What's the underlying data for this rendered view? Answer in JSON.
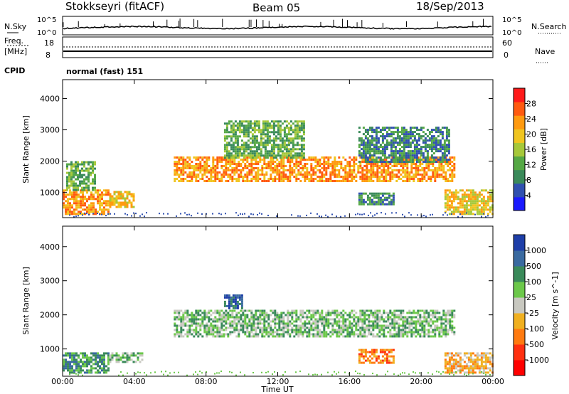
{
  "header": {
    "station": "Stokkseyri (fitACF)",
    "beam": "Beam 05",
    "date": "18/Sep/2013"
  },
  "noise_panel": {
    "left_label": "N.Sky",
    "right_label": "N.Search",
    "left_ticks": [
      "10^5",
      "10^0"
    ],
    "right_ticks": [
      "10^5",
      "10^0"
    ]
  },
  "freq_panel": {
    "left_label_top": "Freq.",
    "left_label_unit": "[MHz]",
    "right_label": "Nave",
    "left_ticks": [
      "18",
      "8"
    ],
    "right_ticks": [
      "60",
      "0"
    ]
  },
  "cpid": {
    "label": "CPID",
    "value": "normal (fast) 151"
  },
  "chart_data": [
    {
      "type": "heatmap",
      "name": "power",
      "ylabel": "Slant Range [km]",
      "yticks": [
        1000,
        2000,
        3000,
        4000
      ],
      "ylim": [
        200,
        4600
      ],
      "xlim": [
        0,
        24
      ],
      "colorbar_label": "Power [dB]",
      "colorbar_ticks": [
        4,
        8,
        12,
        16,
        20,
        24,
        28
      ],
      "colorbar_range": [
        0,
        32
      ],
      "colors": [
        "#1a1aff",
        "#3050b0",
        "#3a8a5a",
        "#55a845",
        "#a6c83a",
        "#f0c520",
        "#ff9a10",
        "#ff5a10",
        "#ff1a1a"
      ],
      "features": [
        {
          "t0": 0.0,
          "t1": 2.6,
          "range": [
            300,
            1100
          ],
          "level": 24
        },
        {
          "t0": 2.6,
          "t1": 4.0,
          "range": [
            550,
            1050
          ],
          "level": 18
        },
        {
          "t0": 0.2,
          "t1": 1.8,
          "range": [
            1100,
            2000
          ],
          "level": 12
        },
        {
          "t0": 6.2,
          "t1": 21.8,
          "range": [
            1350,
            2150
          ],
          "level": 22
        },
        {
          "t0": 9.0,
          "t1": 13.5,
          "range": [
            2100,
            3300
          ],
          "level": 10
        },
        {
          "t0": 16.5,
          "t1": 21.5,
          "range": [
            2000,
            3100
          ],
          "level": 9
        },
        {
          "t0": 16.5,
          "t1": 18.5,
          "range": [
            600,
            1000
          ],
          "level": 6
        },
        {
          "t0": 21.3,
          "t1": 24.0,
          "range": [
            300,
            1100
          ],
          "level": 18
        }
      ]
    },
    {
      "type": "heatmap",
      "name": "velocity",
      "ylabel": "Slant Range [km]",
      "yticks": [
        1000,
        2000,
        3000,
        4000
      ],
      "ylim": [
        200,
        4600
      ],
      "xlim": [
        0,
        24
      ],
      "colorbar_label": "Velocity [m s^-1]",
      "colorbar_ticks": [
        "1000",
        "500",
        "100",
        "25",
        "-25",
        "-100",
        "-500",
        "-1000"
      ],
      "colors": [
        "#1e3ea8",
        "#3a6aa0",
        "#3a8a5a",
        "#6cc84a",
        "#c8c8c0",
        "#f0b020",
        "#ff7a10",
        "#ff3010",
        "#ff0000"
      ],
      "features": [
        {
          "t0": 0.0,
          "t1": 2.6,
          "range": [
            300,
            900
          ],
          "class": "100"
        },
        {
          "t0": 2.6,
          "t1": 4.5,
          "range": [
            600,
            900
          ],
          "class": "25"
        },
        {
          "t0": 6.2,
          "t1": 21.8,
          "range": [
            1350,
            2150
          ],
          "class": "25"
        },
        {
          "t0": 9.0,
          "t1": 10.0,
          "range": [
            2200,
            2600
          ],
          "class": "500"
        },
        {
          "t0": 16.5,
          "t1": 18.5,
          "range": [
            600,
            1000
          ],
          "class": "-500"
        },
        {
          "t0": 21.3,
          "t1": 24.0,
          "range": [
            300,
            900
          ],
          "class": "-100"
        }
      ]
    }
  ],
  "x_axis": {
    "ticks": [
      "00:00",
      "04:00",
      "08:00",
      "12:00",
      "16:00",
      "20:00",
      "00:00"
    ],
    "label": "Time UT"
  }
}
